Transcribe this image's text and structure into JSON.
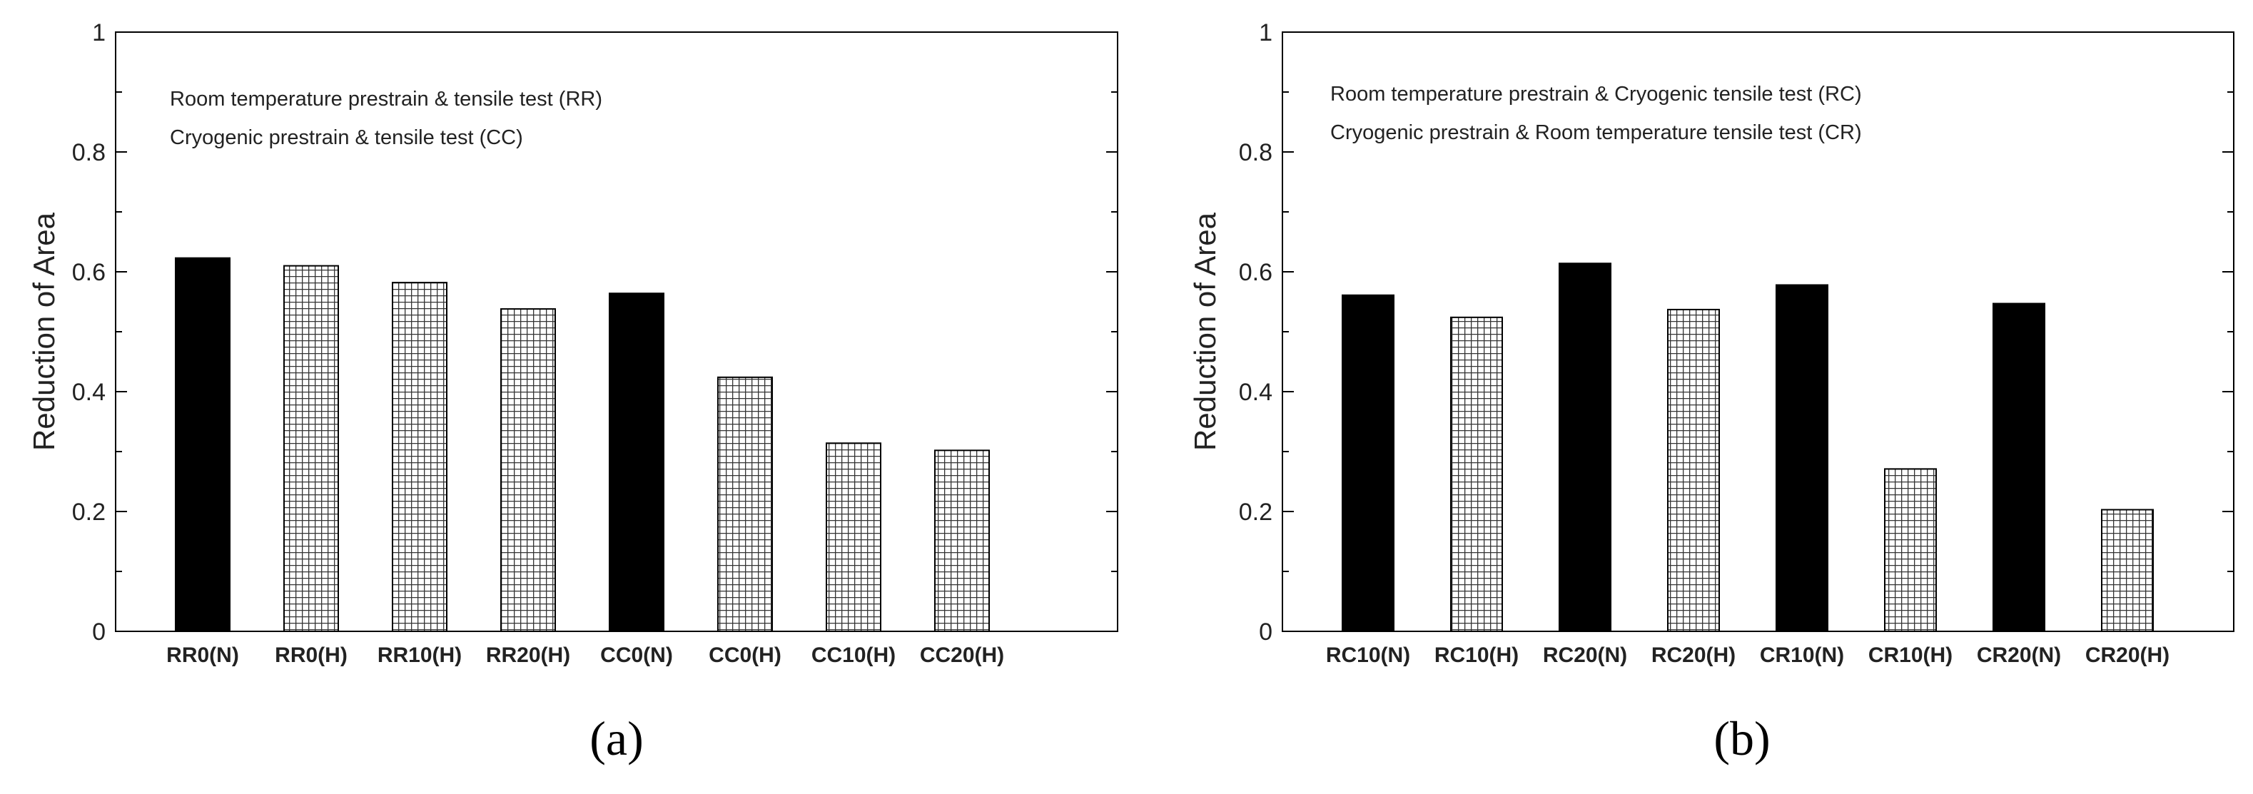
{
  "chart_data": [
    {
      "type": "bar",
      "panel_label": "(a)",
      "ylabel": "Reduction of Area",
      "ylim": [
        0,
        1
      ],
      "yticks": [
        "0",
        "0.2",
        "0.4",
        "0.6",
        "0.8",
        "1"
      ],
      "annotations": [
        "Room temperature prestrain & tensile test (RR)",
        "Cryogenic prestrain & tensile test (CC)"
      ],
      "categories": [
        "RR0(N)",
        "RR0(H)",
        "RR10(H)",
        "RR20(H)",
        "CC0(N)",
        "CC0(H)",
        "CC10(H)",
        "CC20(H)"
      ],
      "values": [
        0.623,
        0.61,
        0.582,
        0.538,
        0.564,
        0.424,
        0.314,
        0.302
      ],
      "fills": [
        "solid",
        "hatch",
        "hatch",
        "hatch",
        "solid",
        "hatch",
        "hatch",
        "hatch"
      ],
      "grid": false
    },
    {
      "type": "bar",
      "panel_label": "(b)",
      "ylabel": "Reduction of Area",
      "ylim": [
        0,
        1
      ],
      "yticks": [
        "0",
        "0.2",
        "0.4",
        "0.6",
        "0.8",
        "1"
      ],
      "annotations": [
        "Room temperature prestrain & Cryogenic tensile test (RC)",
        "Cryogenic prestrain & Room temperature tensile test (CR)"
      ],
      "categories": [
        "RC10(N)",
        "RC10(H)",
        "RC20(N)",
        "RC20(H)",
        "CR10(N)",
        "CR10(H)",
        "CR20(N)",
        "CR20(H)"
      ],
      "values": [
        0.561,
        0.524,
        0.614,
        0.537,
        0.578,
        0.271,
        0.547,
        0.203
      ],
      "fills": [
        "solid",
        "hatch",
        "solid",
        "hatch",
        "solid",
        "hatch",
        "solid",
        "hatch"
      ],
      "grid": false
    }
  ]
}
